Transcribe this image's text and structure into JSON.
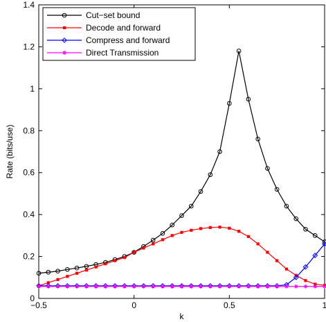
{
  "chart_data": {
    "type": "line",
    "title": "",
    "xlabel": "k",
    "ylabel": "Rate (bits/use)",
    "xlim": [
      -0.5,
      1
    ],
    "ylim": [
      0,
      1.4
    ],
    "xticks": [
      -0.5,
      0,
      0.5,
      1
    ],
    "xtick_labels": [
      "−0.5",
      "0",
      "0.5",
      "1"
    ],
    "yticks": [
      0,
      0.2,
      0.4,
      0.6,
      0.8,
      1,
      1.2,
      1.4
    ],
    "ytick_labels": [
      "0",
      "0.2",
      "0.4",
      "0.6",
      "0.8",
      "1",
      "1.2",
      "1.4"
    ],
    "grid": false,
    "legend_position": "top-left",
    "x": [
      -0.5,
      -0.45,
      -0.4,
      -0.35,
      -0.3,
      -0.25,
      -0.2,
      -0.15,
      -0.1,
      -0.05,
      0,
      0.05,
      0.1,
      0.15,
      0.2,
      0.25,
      0.3,
      0.35,
      0.4,
      0.45,
      0.5,
      0.55,
      0.6,
      0.65,
      0.7,
      0.75,
      0.8,
      0.85,
      0.9,
      0.95,
      1
    ],
    "series": [
      {
        "name": "Cut−set bound",
        "color": "#000000",
        "marker": "circle",
        "values": [
          0.12,
          0.125,
          0.13,
          0.138,
          0.145,
          0.153,
          0.162,
          0.172,
          0.185,
          0.2,
          0.22,
          0.248,
          0.278,
          0.31,
          0.35,
          0.395,
          0.44,
          0.51,
          0.59,
          0.7,
          0.93,
          1.18,
          0.95,
          0.76,
          0.62,
          0.52,
          0.44,
          0.38,
          0.33,
          0.3,
          0.27
        ]
      },
      {
        "name": "Decode and forward",
        "color": "#ff0000",
        "marker": "square",
        "values": [
          0.06,
          0.075,
          0.09,
          0.105,
          0.12,
          0.135,
          0.15,
          0.165,
          0.18,
          0.195,
          0.22,
          0.24,
          0.26,
          0.28,
          0.3,
          0.315,
          0.325,
          0.333,
          0.338,
          0.34,
          0.335,
          0.32,
          0.295,
          0.26,
          0.22,
          0.18,
          0.14,
          0.11,
          0.085,
          0.068,
          0.062
        ]
      },
      {
        "name": "Compress and forward",
        "color": "#0000ff",
        "marker": "diamond",
        "values": [
          0.06,
          0.06,
          0.06,
          0.06,
          0.06,
          0.06,
          0.06,
          0.06,
          0.06,
          0.06,
          0.06,
          0.06,
          0.06,
          0.06,
          0.06,
          0.06,
          0.06,
          0.06,
          0.06,
          0.06,
          0.06,
          0.06,
          0.06,
          0.06,
          0.06,
          0.06,
          0.065,
          0.1,
          0.15,
          0.205,
          0.26
        ]
      },
      {
        "name": "Direct Transmission",
        "color": "#ff00ff",
        "marker": "star",
        "values": [
          0.057,
          0.057,
          0.057,
          0.057,
          0.057,
          0.057,
          0.057,
          0.057,
          0.057,
          0.057,
          0.057,
          0.057,
          0.057,
          0.057,
          0.057,
          0.057,
          0.057,
          0.057,
          0.057,
          0.057,
          0.057,
          0.057,
          0.057,
          0.057,
          0.057,
          0.057,
          0.057,
          0.057,
          0.057,
          0.057,
          0.057
        ]
      }
    ]
  }
}
